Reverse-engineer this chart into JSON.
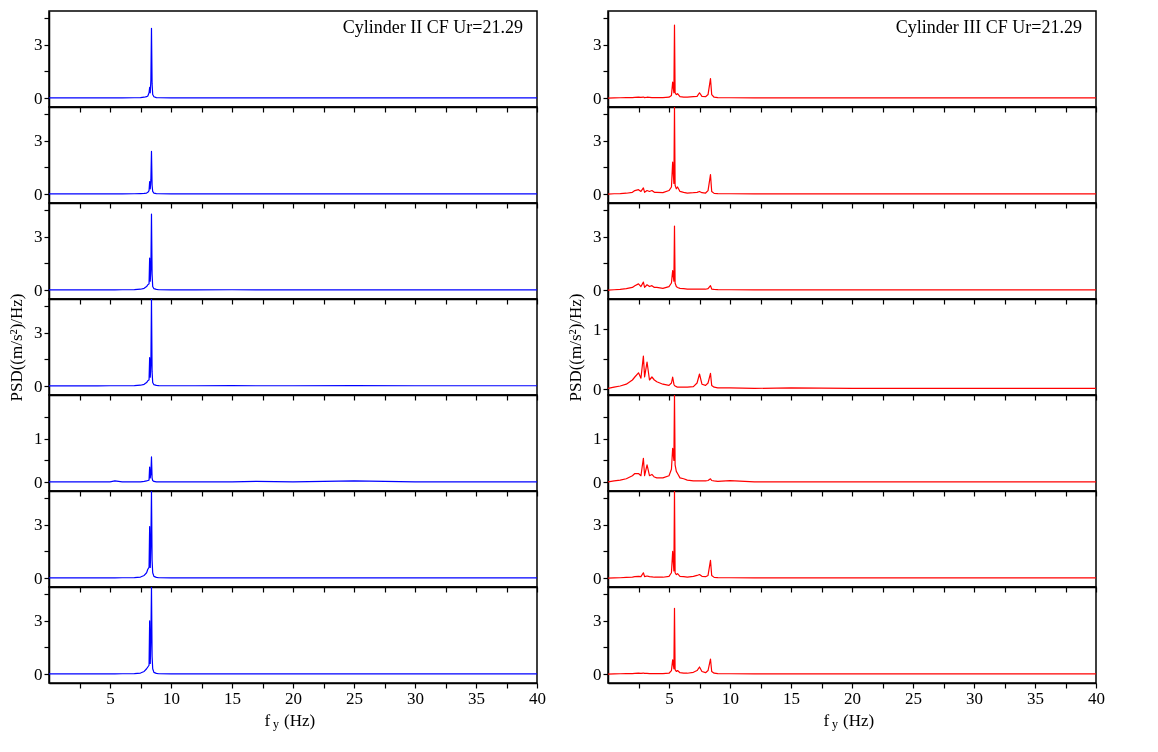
{
  "chart_data": [
    {
      "type": "line",
      "x": [
        0,
        2,
        4,
        5,
        5.4,
        6,
        7,
        7.5,
        7.8,
        8.0,
        8.1,
        8.2,
        8.25,
        8.3,
        8.35,
        8.4,
        8.45,
        8.5,
        8.6,
        8.8,
        9,
        10,
        12,
        15,
        17,
        20,
        25,
        30,
        35,
        40
      ],
      "series": [
        {
          "color": "#0000ff",
          "values": [
            0.01,
            0.01,
            0.01,
            0.01,
            0.01,
            0.01,
            0.02,
            0.03,
            0.05,
            0.08,
            0.12,
            0.3,
            0.6,
            0.3,
            1.0,
            3.93,
            0.8,
            0.2,
            0.08,
            0.03,
            0.02,
            0.01,
            0.01,
            0.01,
            0.01,
            0.01,
            0.01,
            0.01,
            0.01,
            0.01
          ]
        }
      ],
      "xlim": [
        0,
        40
      ],
      "xticks": [
        {
          "value": 2.5,
          "label": null
        },
        5,
        {
          "value": 7.5,
          "label": null
        },
        10,
        {
          "value": 12.5,
          "label": null
        },
        15,
        {
          "value": 17.5,
          "label": null
        },
        20,
        {
          "value": 22.5,
          "label": null
        },
        25,
        {
          "value": 27.5,
          "label": null
        },
        30,
        {
          "value": 32.5,
          "label": null
        },
        35,
        {
          "value": 37.5,
          "label": null
        },
        40
      ],
      "ylim": [
        -0.5,
        4.9
      ],
      "yticks": [
        0,
        {
          "value": 1.5,
          "label": null
        },
        3,
        {
          "value": 4.5,
          "label": null
        }
      ],
      "tick_labels": "y",
      "annotations": [
        "Cylinder II CF Ur=21.29"
      ]
    },
    {
      "type": "line",
      "x": [
        0,
        2,
        4,
        5,
        5.4,
        6,
        7,
        7.5,
        7.8,
        8.0,
        8.1,
        8.2,
        8.25,
        8.3,
        8.35,
        8.4,
        8.45,
        8.5,
        8.6,
        8.8,
        9,
        10,
        12,
        15,
        17,
        20,
        25,
        30,
        35,
        40
      ],
      "series": [
        {
          "color": "#0000ff",
          "values": [
            0.01,
            0.01,
            0.01,
            0.01,
            0.01,
            0.01,
            0.02,
            0.03,
            0.04,
            0.06,
            0.1,
            0.2,
            0.7,
            0.3,
            0.8,
            2.4,
            0.5,
            0.15,
            0.06,
            0.03,
            0.02,
            0.01,
            0.01,
            0.01,
            0.01,
            0.01,
            0.01,
            0.01,
            0.01,
            0.01
          ]
        }
      ],
      "xlim": [
        0,
        40
      ],
      "xticks": [
        {
          "value": 2.5,
          "label": null
        },
        5,
        {
          "value": 7.5,
          "label": null
        },
        10,
        {
          "value": 12.5,
          "label": null
        },
        15,
        {
          "value": 17.5,
          "label": null
        },
        20,
        {
          "value": 22.5,
          "label": null
        },
        25,
        {
          "value": 27.5,
          "label": null
        },
        30,
        {
          "value": 32.5,
          "label": null
        },
        35,
        {
          "value": 37.5,
          "label": null
        },
        40
      ],
      "ylim": [
        -0.5,
        4.9
      ],
      "yticks": [
        0,
        {
          "value": 1.5,
          "label": null
        },
        3,
        {
          "value": 4.5,
          "label": null
        }
      ],
      "tick_labels": "y"
    },
    {
      "type": "line",
      "x": [
        0,
        2,
        4,
        5,
        5.4,
        6,
        7,
        7.5,
        7.8,
        8.0,
        8.1,
        8.2,
        8.25,
        8.3,
        8.35,
        8.4,
        8.45,
        8.5,
        8.6,
        8.8,
        9,
        10,
        12,
        15,
        17,
        20,
        25,
        30,
        35,
        40
      ],
      "series": [
        {
          "color": "#0000ff",
          "values": [
            0.01,
            0.01,
            0.01,
            0.01,
            0.01,
            0.02,
            0.03,
            0.05,
            0.1,
            0.2,
            0.3,
            0.35,
            1.8,
            0.5,
            1.2,
            4.27,
            0.9,
            0.2,
            0.08,
            0.04,
            0.02,
            0.01,
            0.01,
            0.02,
            0.01,
            0.01,
            0.01,
            0.01,
            0.01,
            0.01
          ]
        }
      ],
      "xlim": [
        0,
        40
      ],
      "xticks": [
        {
          "value": 2.5,
          "label": null
        },
        5,
        {
          "value": 7.5,
          "label": null
        },
        10,
        {
          "value": 12.5,
          "label": null
        },
        15,
        {
          "value": 17.5,
          "label": null
        },
        20,
        {
          "value": 22.5,
          "label": null
        },
        25,
        {
          "value": 27.5,
          "label": null
        },
        30,
        {
          "value": 32.5,
          "label": null
        },
        35,
        {
          "value": 37.5,
          "label": null
        },
        40
      ],
      "ylim": [
        -0.5,
        4.9
      ],
      "yticks": [
        0,
        {
          "value": 1.5,
          "label": null
        },
        3,
        {
          "value": 4.5,
          "label": null
        }
      ],
      "tick_labels": "y"
    },
    {
      "type": "line",
      "x": [
        0,
        2,
        4,
        5,
        5.4,
        6,
        7,
        7.5,
        7.8,
        8.0,
        8.1,
        8.2,
        8.25,
        8.3,
        8.35,
        8.4,
        8.45,
        8.5,
        8.6,
        8.8,
        9,
        10,
        12,
        15,
        17,
        20,
        25,
        30,
        35,
        40
      ],
      "series": [
        {
          "color": "#0000ff",
          "values": [
            0.01,
            0.01,
            0.01,
            0.02,
            0.02,
            0.02,
            0.03,
            0.05,
            0.1,
            0.2,
            0.3,
            0.35,
            1.6,
            0.5,
            1.2,
            4.9,
            0.8,
            0.2,
            0.08,
            0.04,
            0.03,
            0.02,
            0.02,
            0.03,
            0.02,
            0.02,
            0.03,
            0.02,
            0.02,
            0.02
          ]
        }
      ],
      "xlim": [
        0,
        40
      ],
      "xticks": [
        {
          "value": 2.5,
          "label": null
        },
        5,
        {
          "value": 7.5,
          "label": null
        },
        10,
        {
          "value": 12.5,
          "label": null
        },
        15,
        {
          "value": 17.5,
          "label": null
        },
        20,
        {
          "value": 22.5,
          "label": null
        },
        25,
        {
          "value": 27.5,
          "label": null
        },
        30,
        {
          "value": 32.5,
          "label": null
        },
        35,
        {
          "value": 37.5,
          "label": null
        },
        40
      ],
      "ylim": [
        -0.5,
        4.9
      ],
      "yticks": [
        0,
        {
          "value": 1.5,
          "label": null
        },
        3,
        {
          "value": 4.5,
          "label": null
        }
      ],
      "tick_labels": "y",
      "ylabel": "PSD((m/s²)/Hz)"
    },
    {
      "type": "line",
      "x": [
        0,
        2,
        4,
        5,
        5.4,
        6,
        7,
        7.5,
        7.8,
        8.0,
        8.1,
        8.2,
        8.25,
        8.3,
        8.35,
        8.4,
        8.45,
        8.5,
        8.6,
        8.8,
        9,
        10,
        12,
        15,
        17,
        20,
        25,
        30,
        35,
        40
      ],
      "series": [
        {
          "color": "#0000ff",
          "values": [
            0.01,
            0.01,
            0.01,
            0.01,
            0.03,
            0.01,
            0.01,
            0.01,
            0.02,
            0.03,
            0.04,
            0.05,
            0.35,
            0.1,
            0.2,
            0.58,
            0.1,
            0.04,
            0.02,
            0.01,
            0.01,
            0.01,
            0.01,
            0.01,
            0.02,
            0.01,
            0.03,
            0.01,
            0.01,
            0.01
          ]
        }
      ],
      "xlim": [
        0,
        40
      ],
      "xticks": [
        {
          "value": 2.5,
          "label": null
        },
        5,
        {
          "value": 7.5,
          "label": null
        },
        10,
        {
          "value": 12.5,
          "label": null
        },
        15,
        {
          "value": 17.5,
          "label": null
        },
        20,
        {
          "value": 22.5,
          "label": null
        },
        25,
        {
          "value": 27.5,
          "label": null
        },
        30,
        {
          "value": 32.5,
          "label": null
        },
        35,
        {
          "value": 37.5,
          "label": null
        },
        40
      ],
      "ylim": [
        -0.2,
        2.0
      ],
      "yticks": [
        0,
        {
          "value": 0.5,
          "label": null
        },
        1,
        {
          "value": 1.5,
          "label": null
        }
      ],
      "tick_labels": "y"
    },
    {
      "type": "line",
      "x": [
        0,
        2,
        4,
        5,
        5.4,
        6,
        7,
        7.5,
        7.8,
        8.0,
        8.1,
        8.2,
        8.25,
        8.3,
        8.35,
        8.4,
        8.45,
        8.5,
        8.6,
        8.8,
        9,
        10,
        12,
        15,
        17,
        20,
        25,
        30,
        35,
        40
      ],
      "series": [
        {
          "color": "#0000ff",
          "values": [
            0.01,
            0.01,
            0.01,
            0.01,
            0.01,
            0.02,
            0.03,
            0.06,
            0.15,
            0.3,
            0.5,
            0.6,
            2.9,
            0.6,
            2.0,
            4.9,
            1.0,
            0.3,
            0.1,
            0.04,
            0.02,
            0.01,
            0.01,
            0.01,
            0.01,
            0.01,
            0.01,
            0.01,
            0.01,
            0.01
          ]
        }
      ],
      "xlim": [
        0,
        40
      ],
      "xticks": [
        {
          "value": 2.5,
          "label": null
        },
        5,
        {
          "value": 7.5,
          "label": null
        },
        10,
        {
          "value": 12.5,
          "label": null
        },
        15,
        {
          "value": 17.5,
          "label": null
        },
        20,
        {
          "value": 22.5,
          "label": null
        },
        25,
        {
          "value": 27.5,
          "label": null
        },
        30,
        {
          "value": 32.5,
          "label": null
        },
        35,
        {
          "value": 37.5,
          "label": null
        },
        40
      ],
      "ylim": [
        -0.5,
        4.9
      ],
      "yticks": [
        0,
        {
          "value": 1.5,
          "label": null
        },
        3,
        {
          "value": 4.5,
          "label": null
        }
      ],
      "tick_labels": "y"
    },
    {
      "type": "line",
      "x": [
        0,
        2,
        4,
        5,
        5.4,
        6,
        7,
        7.5,
        7.8,
        8.0,
        8.1,
        8.2,
        8.25,
        8.3,
        8.35,
        8.4,
        8.45,
        8.5,
        8.6,
        8.8,
        9,
        10,
        12,
        15,
        17,
        20,
        25,
        30,
        35,
        40
      ],
      "series": [
        {
          "color": "#0000ff",
          "values": [
            0.01,
            0.01,
            0.01,
            0.01,
            0.01,
            0.02,
            0.03,
            0.06,
            0.15,
            0.3,
            0.4,
            0.5,
            3.0,
            0.6,
            2.0,
            4.9,
            1.0,
            0.3,
            0.1,
            0.04,
            0.02,
            0.01,
            0.01,
            0.01,
            0.01,
            0.01,
            0.01,
            0.01,
            0.01,
            0.01
          ]
        }
      ],
      "xlim": [
        0,
        40
      ],
      "xticks": [
        {
          "value": 2.5,
          "label": null
        },
        5,
        {
          "value": 7.5,
          "label": null
        },
        10,
        {
          "value": 12.5,
          "label": null
        },
        15,
        {
          "value": 17.5,
          "label": null
        },
        20,
        {
          "value": 22.5,
          "label": null
        },
        25,
        {
          "value": 27.5,
          "label": null
        },
        30,
        {
          "value": 32.5,
          "label": null
        },
        35,
        {
          "value": 37.5,
          "label": null
        },
        40
      ],
      "ylim": [
        -0.5,
        4.9
      ],
      "yticks": [
        0,
        {
          "value": 1.5,
          "label": null
        },
        3,
        {
          "value": 4.5,
          "label": null
        }
      ],
      "xlabel": "f$_{y}$ (Hz)"
    },
    {
      "type": "line",
      "x": [
        0,
        0.5,
        1,
        1.5,
        2,
        2.2,
        2.5,
        2.7,
        2.9,
        3.0,
        3.2,
        3.4,
        3.6,
        3.8,
        4,
        4.5,
        5,
        5.2,
        5.3,
        5.4,
        5.45,
        5.5,
        5.6,
        5.7,
        5.9,
        6.2,
        6.5,
        7,
        7.3,
        7.5,
        7.7,
        8,
        8.2,
        8.4,
        8.5,
        8.7,
        9,
        10,
        12,
        15,
        20,
        25,
        30,
        35,
        40
      ],
      "series": [
        {
          "color": "#ff0000",
          "values": [
            0,
            0.01,
            0.02,
            0.03,
            0.03,
            0.04,
            0.05,
            0.04,
            0.06,
            0.03,
            0.05,
            0.04,
            0.03,
            0.03,
            0.03,
            0.03,
            0.05,
            0.15,
            0.9,
            0.3,
            4.1,
            0.3,
            0.2,
            0.25,
            0.08,
            0.06,
            0.05,
            0.08,
            0.1,
            0.3,
            0.1,
            0.08,
            0.2,
            1.1,
            0.2,
            0.05,
            0.03,
            0.02,
            0.01,
            0.01,
            0.01,
            0.01,
            0.01,
            0.01,
            0.01
          ]
        }
      ],
      "xlim": [
        0,
        40
      ],
      "xticks": [
        {
          "value": 2.5,
          "label": null
        },
        5,
        {
          "value": 7.5,
          "label": null
        },
        10,
        {
          "value": 12.5,
          "label": null
        },
        15,
        {
          "value": 17.5,
          "label": null
        },
        20,
        {
          "value": 22.5,
          "label": null
        },
        25,
        {
          "value": 27.5,
          "label": null
        },
        30,
        {
          "value": 32.5,
          "label": null
        },
        35,
        {
          "value": 37.5,
          "label": null
        },
        40
      ],
      "ylim": [
        -0.5,
        4.9
      ],
      "yticks": [
        0,
        {
          "value": 1.5,
          "label": null
        },
        3,
        {
          "value": 4.5,
          "label": null
        }
      ],
      "tick_labels": "y",
      "annotations": [
        "Cylinder III CF Ur=21.29"
      ]
    },
    {
      "type": "line",
      "x": [
        0,
        0.5,
        1,
        1.5,
        2,
        2.2,
        2.5,
        2.7,
        2.9,
        3.0,
        3.2,
        3.4,
        3.6,
        3.8,
        4,
        4.5,
        5,
        5.2,
        5.3,
        5.4,
        5.45,
        5.5,
        5.6,
        5.7,
        5.9,
        6.2,
        6.5,
        7,
        7.3,
        7.5,
        7.7,
        8,
        8.2,
        8.4,
        8.5,
        8.7,
        9,
        10,
        12,
        15,
        20,
        25,
        30,
        35,
        40
      ],
      "series": [
        {
          "color": "#ff0000",
          "values": [
            0,
            0.02,
            0.03,
            0.05,
            0.1,
            0.2,
            0.25,
            0.15,
            0.35,
            0.1,
            0.2,
            0.15,
            0.2,
            0.1,
            0.1,
            0.08,
            0.2,
            0.4,
            1.8,
            0.6,
            4.9,
            0.5,
            0.3,
            0.4,
            0.15,
            0.1,
            0.06,
            0.08,
            0.1,
            0.15,
            0.08,
            0.06,
            0.2,
            1.1,
            0.15,
            0.04,
            0.03,
            0.02,
            0.01,
            0.01,
            0.01,
            0.01,
            0.01,
            0.01,
            0.01
          ]
        }
      ],
      "xlim": [
        0,
        40
      ],
      "xticks": [
        {
          "value": 2.5,
          "label": null
        },
        5,
        {
          "value": 7.5,
          "label": null
        },
        10,
        {
          "value": 12.5,
          "label": null
        },
        15,
        {
          "value": 17.5,
          "label": null
        },
        20,
        {
          "value": 22.5,
          "label": null
        },
        25,
        {
          "value": 27.5,
          "label": null
        },
        30,
        {
          "value": 32.5,
          "label": null
        },
        35,
        {
          "value": 37.5,
          "label": null
        },
        40
      ],
      "ylim": [
        -0.5,
        4.9
      ],
      "yticks": [
        0,
        {
          "value": 1.5,
          "label": null
        },
        3,
        {
          "value": 4.5,
          "label": null
        }
      ],
      "tick_labels": "y"
    },
    {
      "type": "line",
      "x": [
        0,
        0.5,
        1,
        1.5,
        2,
        2.2,
        2.5,
        2.7,
        2.9,
        3.0,
        3.2,
        3.4,
        3.6,
        3.8,
        4,
        4.5,
        5,
        5.2,
        5.3,
        5.4,
        5.45,
        5.5,
        5.6,
        5.7,
        5.9,
        6.2,
        6.5,
        7,
        7.3,
        7.5,
        7.7,
        8,
        8.2,
        8.4,
        8.5,
        8.7,
        9,
        10,
        12,
        15,
        20,
        25,
        30,
        35,
        40
      ],
      "series": [
        {
          "color": "#ff0000",
          "values": [
            0,
            0.02,
            0.04,
            0.08,
            0.15,
            0.25,
            0.35,
            0.2,
            0.45,
            0.15,
            0.3,
            0.2,
            0.25,
            0.15,
            0.15,
            0.1,
            0.2,
            0.4,
            1.1,
            0.5,
            3.6,
            0.4,
            0.2,
            0.15,
            0.1,
            0.08,
            0.06,
            0.05,
            0.05,
            0.06,
            0.05,
            0.05,
            0.08,
            0.25,
            0.06,
            0.04,
            0.03,
            0.02,
            0.01,
            0.01,
            0.01,
            0.01,
            0.01,
            0.01,
            0.01
          ]
        }
      ],
      "xlim": [
        0,
        40
      ],
      "xticks": [
        {
          "value": 2.5,
          "label": null
        },
        5,
        {
          "value": 7.5,
          "label": null
        },
        10,
        {
          "value": 12.5,
          "label": null
        },
        15,
        {
          "value": 17.5,
          "label": null
        },
        20,
        {
          "value": 22.5,
          "label": null
        },
        25,
        {
          "value": 27.5,
          "label": null
        },
        30,
        {
          "value": 32.5,
          "label": null
        },
        35,
        {
          "value": 37.5,
          "label": null
        },
        40
      ],
      "ylim": [
        -0.5,
        4.9
      ],
      "yticks": [
        0,
        {
          "value": 1.5,
          "label": null
        },
        3,
        {
          "value": 4.5,
          "label": null
        }
      ],
      "tick_labels": "y"
    },
    {
      "type": "line",
      "x": [
        0,
        0.5,
        1,
        1.5,
        2,
        2.2,
        2.5,
        2.7,
        2.9,
        3.0,
        3.2,
        3.4,
        3.6,
        3.8,
        4,
        4.5,
        5,
        5.2,
        5.3,
        5.4,
        5.45,
        5.5,
        5.6,
        5.7,
        5.9,
        6.2,
        6.5,
        7,
        7.3,
        7.5,
        7.7,
        8,
        8.2,
        8.4,
        8.5,
        8.7,
        9,
        10,
        12,
        15,
        20,
        25,
        30,
        35,
        40
      ],
      "series": [
        {
          "color": "#ff0000",
          "values": [
            0.01,
            0.03,
            0.05,
            0.08,
            0.15,
            0.2,
            0.27,
            0.18,
            0.55,
            0.2,
            0.45,
            0.15,
            0.2,
            0.15,
            0.12,
            0.08,
            0.06,
            0.1,
            0.2,
            0.08,
            0.06,
            0.05,
            0.04,
            0.03,
            0.03,
            0.03,
            0.03,
            0.04,
            0.1,
            0.25,
            0.08,
            0.06,
            0.1,
            0.26,
            0.06,
            0.03,
            0.02,
            0.02,
            0.01,
            0.02,
            0.01,
            0.01,
            0.01,
            0.01,
            0.01
          ]
        }
      ],
      "xlim": [
        0,
        40
      ],
      "xticks": [
        {
          "value": 2.5,
          "label": null
        },
        5,
        {
          "value": 7.5,
          "label": null
        },
        10,
        {
          "value": 12.5,
          "label": null
        },
        15,
        {
          "value": 17.5,
          "label": null
        },
        20,
        {
          "value": 22.5,
          "label": null
        },
        25,
        {
          "value": 27.5,
          "label": null
        },
        30,
        {
          "value": 32.5,
          "label": null
        },
        35,
        {
          "value": 37.5,
          "label": null
        },
        40
      ],
      "ylim": [
        -0.1,
        1.5
      ],
      "yticks": [
        0,
        {
          "value": 0.5,
          "label": null
        },
        1
      ],
      "tick_labels": "y",
      "ylabel": "PSD((m/s²)/Hz)"
    },
    {
      "type": "line",
      "x": [
        0,
        0.5,
        1,
        1.5,
        2,
        2.2,
        2.5,
        2.7,
        2.9,
        3.0,
        3.2,
        3.4,
        3.6,
        3.8,
        4,
        4.5,
        5,
        5.2,
        5.3,
        5.4,
        5.45,
        5.5,
        5.6,
        5.7,
        5.9,
        6.2,
        6.5,
        7,
        7.3,
        7.5,
        7.7,
        8,
        8.2,
        8.4,
        8.5,
        8.7,
        9,
        10,
        12,
        15,
        20,
        25,
        30,
        35,
        40
      ],
      "series": [
        {
          "color": "#ff0000",
          "values": [
            0.01,
            0.03,
            0.05,
            0.08,
            0.15,
            0.2,
            0.2,
            0.15,
            0.55,
            0.15,
            0.4,
            0.15,
            0.18,
            0.12,
            0.1,
            0.1,
            0.15,
            0.3,
            0.78,
            0.5,
            2.0,
            0.4,
            0.25,
            0.2,
            0.1,
            0.08,
            0.05,
            0.03,
            0.03,
            0.03,
            0.03,
            0.03,
            0.04,
            0.08,
            0.04,
            0.03,
            0.02,
            0.04,
            0.01,
            0.01,
            0.01,
            0.01,
            0.01,
            0.01,
            0.01
          ]
        }
      ],
      "xlim": [
        0,
        40
      ],
      "xticks": [
        {
          "value": 2.5,
          "label": null
        },
        5,
        {
          "value": 7.5,
          "label": null
        },
        10,
        {
          "value": 12.5,
          "label": null
        },
        15,
        {
          "value": 17.5,
          "label": null
        },
        20,
        {
          "value": 22.5,
          "label": null
        },
        25,
        {
          "value": 27.5,
          "label": null
        },
        30,
        {
          "value": 32.5,
          "label": null
        },
        35,
        {
          "value": 37.5,
          "label": null
        },
        40
      ],
      "ylim": [
        -0.2,
        2.0
      ],
      "yticks": [
        0,
        {
          "value": 0.5,
          "label": null
        },
        1,
        {
          "value": 1.5,
          "label": null
        }
      ],
      "tick_labels": "y"
    },
    {
      "type": "line",
      "x": [
        0,
        0.5,
        1,
        1.5,
        2,
        2.2,
        2.5,
        2.7,
        2.9,
        3.0,
        3.2,
        3.4,
        3.6,
        3.8,
        4,
        4.5,
        5,
        5.2,
        5.3,
        5.4,
        5.45,
        5.5,
        5.6,
        5.7,
        5.9,
        6.2,
        6.5,
        7,
        7.3,
        7.5,
        7.7,
        8,
        8.2,
        8.4,
        8.5,
        8.7,
        9,
        10,
        12,
        15,
        20,
        25,
        30,
        35,
        40
      ],
      "series": [
        {
          "color": "#ff0000",
          "values": [
            0,
            0.01,
            0.02,
            0.04,
            0.06,
            0.08,
            0.1,
            0.08,
            0.3,
            0.08,
            0.12,
            0.08,
            0.07,
            0.05,
            0.05,
            0.05,
            0.1,
            0.3,
            1.5,
            0.4,
            4.9,
            0.3,
            0.2,
            0.25,
            0.1,
            0.08,
            0.06,
            0.1,
            0.15,
            0.2,
            0.1,
            0.08,
            0.15,
            1.0,
            0.15,
            0.04,
            0.03,
            0.02,
            0.01,
            0.01,
            0.01,
            0.01,
            0.01,
            0.01,
            0.01
          ]
        }
      ],
      "xlim": [
        0,
        40
      ],
      "xticks": [
        {
          "value": 2.5,
          "label": null
        },
        5,
        {
          "value": 7.5,
          "label": null
        },
        10,
        {
          "value": 12.5,
          "label": null
        },
        15,
        {
          "value": 17.5,
          "label": null
        },
        20,
        {
          "value": 22.5,
          "label": null
        },
        25,
        {
          "value": 27.5,
          "label": null
        },
        30,
        {
          "value": 32.5,
          "label": null
        },
        35,
        {
          "value": 37.5,
          "label": null
        },
        40
      ],
      "ylim": [
        -0.5,
        4.9
      ],
      "yticks": [
        0,
        {
          "value": 1.5,
          "label": null
        },
        3,
        {
          "value": 4.5,
          "label": null
        }
      ],
      "tick_labels": "y"
    },
    {
      "type": "line",
      "x": [
        0,
        0.5,
        1,
        1.5,
        2,
        2.2,
        2.5,
        2.7,
        2.9,
        3.0,
        3.2,
        3.4,
        3.6,
        3.8,
        4,
        4.5,
        5,
        5.2,
        5.3,
        5.4,
        5.45,
        5.5,
        5.6,
        5.7,
        5.9,
        6.2,
        6.5,
        7,
        7.3,
        7.5,
        7.7,
        8,
        8.2,
        8.4,
        8.5,
        8.7,
        9,
        10,
        12,
        15,
        20,
        25,
        30,
        35,
        40
      ],
      "series": [
        {
          "color": "#ff0000",
          "values": [
            0,
            0.01,
            0.02,
            0.03,
            0.03,
            0.04,
            0.05,
            0.04,
            0.06,
            0.04,
            0.04,
            0.03,
            0.03,
            0.03,
            0.03,
            0.03,
            0.05,
            0.2,
            0.8,
            0.3,
            3.7,
            0.25,
            0.15,
            0.2,
            0.08,
            0.06,
            0.05,
            0.1,
            0.2,
            0.4,
            0.15,
            0.08,
            0.2,
            0.85,
            0.15,
            0.05,
            0.03,
            0.02,
            0.01,
            0.01,
            0.01,
            0.01,
            0.01,
            0.01,
            0.01
          ]
        }
      ],
      "xlim": [
        0,
        40
      ],
      "xticks": [
        {
          "value": 2.5,
          "label": null
        },
        5,
        {
          "value": 7.5,
          "label": null
        },
        10,
        {
          "value": 12.5,
          "label": null
        },
        15,
        {
          "value": 17.5,
          "label": null
        },
        20,
        {
          "value": 22.5,
          "label": null
        },
        25,
        {
          "value": 27.5,
          "label": null
        },
        30,
        {
          "value": 32.5,
          "label": null
        },
        35,
        {
          "value": 37.5,
          "label": null
        },
        40
      ],
      "ylim": [
        -0.5,
        4.9
      ],
      "yticks": [
        0,
        {
          "value": 1.5,
          "label": null
        },
        3,
        {
          "value": 4.5,
          "label": null
        }
      ],
      "xlabel": "f$_{y}$ (Hz)"
    }
  ]
}
